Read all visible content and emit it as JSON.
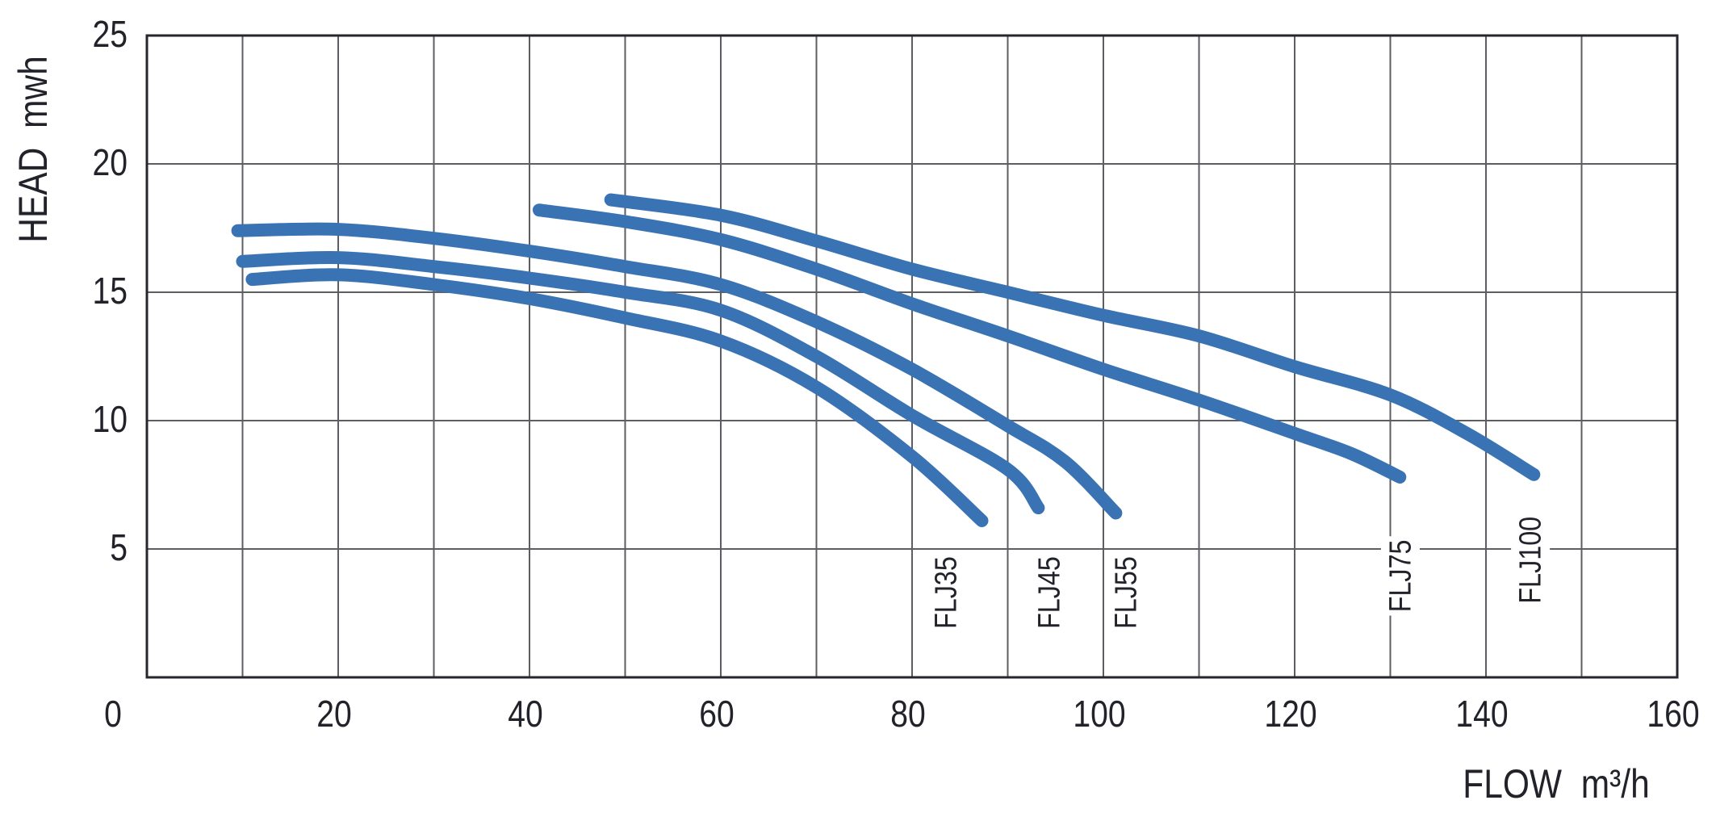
{
  "chart_data": {
    "type": "line",
    "title": "",
    "xlabel": "FLOW m³/h",
    "ylabel": "HEAD mwh",
    "xlim": [
      0,
      160
    ],
    "ylim": [
      0,
      25
    ],
    "grid": true,
    "x_gridline_step": 10,
    "y_gridline_step": 5,
    "x_ticks": [
      0,
      20,
      40,
      60,
      80,
      100,
      120,
      140,
      160
    ],
    "x_tick_labels": [
      "0",
      "20",
      "40",
      "60",
      "80",
      "100",
      "120",
      "140",
      "160"
    ],
    "y_ticks": [
      5,
      10,
      15,
      20,
      25
    ],
    "y_tick_labels": [
      "5",
      "10",
      "15",
      "20",
      "25"
    ],
    "legend_position": "rotated-labels-at-curve-ends",
    "series": [
      {
        "name": "FLJ35",
        "label_x": 83.5,
        "label_top": 4.9,
        "points": [
          [
            11,
            15.5
          ],
          [
            20,
            15.68
          ],
          [
            30,
            15.3
          ],
          [
            40,
            14.75
          ],
          [
            50,
            14.0
          ],
          [
            60,
            13.1
          ],
          [
            70,
            11.3
          ],
          [
            80,
            8.6
          ],
          [
            87.3,
            6.1
          ]
        ]
      },
      {
        "name": "FLJ45",
        "label_x": 94.3,
        "label_top": 4.9,
        "points": [
          [
            10,
            16.2
          ],
          [
            20,
            16.35
          ],
          [
            30,
            16.0
          ],
          [
            40,
            15.55
          ],
          [
            50,
            15.0
          ],
          [
            60,
            14.3
          ],
          [
            70,
            12.5
          ],
          [
            80,
            10.2
          ],
          [
            90,
            8.1
          ],
          [
            93.2,
            6.6
          ]
        ]
      },
      {
        "name": "FLJ55",
        "label_x": 102.3,
        "label_top": 4.9,
        "points": [
          [
            9.5,
            17.4
          ],
          [
            20,
            17.45
          ],
          [
            30,
            17.1
          ],
          [
            40,
            16.6
          ],
          [
            50,
            16.0
          ],
          [
            60,
            15.3
          ],
          [
            70,
            13.85
          ],
          [
            80,
            12.0
          ],
          [
            90,
            9.8
          ],
          [
            96,
            8.4
          ],
          [
            101.3,
            6.4
          ]
        ]
      },
      {
        "name": "FLJ75",
        "label_x": 131.0,
        "label_top": 5.55,
        "points": [
          [
            41,
            18.2
          ],
          [
            50,
            17.75
          ],
          [
            60,
            17.05
          ],
          [
            70,
            15.9
          ],
          [
            80,
            14.55
          ],
          [
            90,
            13.3
          ],
          [
            100,
            12.0
          ],
          [
            110,
            10.8
          ],
          [
            120,
            9.5
          ],
          [
            126,
            8.7
          ],
          [
            131,
            7.8
          ]
        ]
      },
      {
        "name": "FLJ100",
        "label_x": 144.6,
        "label_top": 6.45,
        "points": [
          [
            48.5,
            18.6
          ],
          [
            60,
            18.0
          ],
          [
            70,
            17.0
          ],
          [
            80,
            15.9
          ],
          [
            90,
            15.0
          ],
          [
            100,
            14.1
          ],
          [
            110,
            13.3
          ],
          [
            120,
            12.1
          ],
          [
            130,
            11.0
          ],
          [
            138,
            9.5
          ],
          [
            145,
            7.9
          ]
        ]
      }
    ]
  },
  "style": {
    "curve_color": "#3a73b4",
    "grid_color": "#5d5e63",
    "border_color": "#26272c",
    "text_color": "#22232a",
    "background": "#ffffff"
  }
}
